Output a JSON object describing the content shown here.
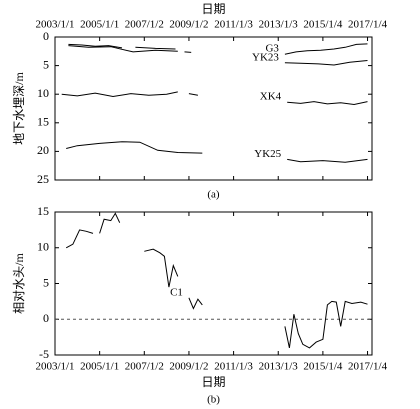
{
  "chart_data": [
    {
      "type": "line",
      "xlabel": "日期",
      "ylabel": "地下水埋深/m",
      "caption": "(a)",
      "xaxis": "top",
      "xlim": [
        2003,
        2017.2
      ],
      "ylim": [
        25,
        0
      ],
      "yticks": [
        0,
        5,
        10,
        15,
        20,
        25
      ],
      "xticks": [
        {
          "value": 2003,
          "label": "2003/1/1"
        },
        {
          "value": 2005,
          "label": "2005/1/1"
        },
        {
          "value": 2007,
          "label": "2007/1/2"
        },
        {
          "value": 2009,
          "label": "2009/1/2"
        },
        {
          "value": 2011,
          "label": "2011/1/3"
        },
        {
          "value": 2013,
          "label": "2013/1/3"
        },
        {
          "value": 2015,
          "label": "2015/1/4"
        },
        {
          "value": 2017,
          "label": "2017/1/4"
        }
      ],
      "series": [
        {
          "name": "G3",
          "color": "#000000",
          "x": [
            2003.6,
            2004.2,
            2004.8,
            2005.4,
            2006.0,
            null,
            2006.6,
            2007.5,
            2008.4,
            null,
            2008.8,
            2009.1,
            null,
            2013.3,
            2013.8,
            2014.3,
            2014.9,
            2015.5,
            2016.0,
            2016.5,
            2017.0
          ],
          "values": [
            1.3,
            1.4,
            1.6,
            1.5,
            1.9,
            null,
            1.8,
            2.0,
            2.1,
            null,
            2.6,
            2.7,
            null,
            3.0,
            2.6,
            2.4,
            2.3,
            2.1,
            1.8,
            1.3,
            1.2
          ]
        },
        {
          "name": "YK23",
          "color": "#000000",
          "x": [
            2003.6,
            2004.5,
            2005.5,
            2006.5,
            2007.5,
            2008.5,
            null,
            2013.3,
            2014.0,
            2014.8,
            2015.5,
            2016.2,
            2017.0
          ],
          "values": [
            1.5,
            1.8,
            1.7,
            2.6,
            2.3,
            2.5,
            null,
            4.5,
            4.6,
            4.7,
            4.9,
            4.4,
            4.1
          ]
        },
        {
          "name": "XK4",
          "color": "#000000",
          "x": [
            2003.3,
            2004.0,
            2004.8,
            2005.6,
            2006.4,
            2007.2,
            2008.0,
            2008.5,
            null,
            2009.0,
            2009.4,
            null,
            2013.4,
            2014.0,
            2014.6,
            2015.2,
            2015.8,
            2016.4,
            2017.0
          ],
          "values": [
            10.0,
            10.3,
            9.8,
            10.4,
            9.9,
            10.2,
            10.0,
            9.6,
            null,
            9.9,
            10.2,
            null,
            11.4,
            11.6,
            11.3,
            11.7,
            11.5,
            11.8,
            11.3
          ]
        },
        {
          "name": "YK25",
          "color": "#000000",
          "x": [
            2003.5,
            2004.0,
            2005.0,
            2006.0,
            2006.8,
            2007.6,
            2008.5,
            2009.6,
            null,
            2013.4,
            2014.0,
            2015.0,
            2016.0,
            2017.0
          ],
          "values": [
            19.5,
            19.0,
            18.6,
            18.3,
            18.4,
            19.8,
            20.2,
            20.3,
            null,
            21.4,
            21.8,
            21.6,
            21.9,
            21.4
          ]
        }
      ]
    },
    {
      "type": "line",
      "xlabel": "日期",
      "ylabel": "相对水头/m",
      "caption": "(b)",
      "xaxis": "bottom",
      "reference_line": 0,
      "xlim": [
        2003,
        2017.2
      ],
      "ylim": [
        -5,
        15
      ],
      "yticks": [
        -5,
        0,
        5,
        10,
        15
      ],
      "xticks": [
        {
          "value": 2003,
          "label": "2003/1/1"
        },
        {
          "value": 2005,
          "label": "2005/1/1"
        },
        {
          "value": 2007,
          "label": "2007/1/2"
        },
        {
          "value": 2009,
          "label": "2009/1/2"
        },
        {
          "value": 2011,
          "label": "2011/1/3"
        },
        {
          "value": 2013,
          "label": "2013/1/3"
        },
        {
          "value": 2015,
          "label": "2015/1/4"
        },
        {
          "value": 2017,
          "label": "2017/1/4"
        }
      ],
      "series": [
        {
          "name": "C1",
          "color": "#000000",
          "x": [
            2003.5,
            2003.8,
            2004.1,
            2004.4,
            2004.7,
            null,
            2005.0,
            2005.2,
            2005.5,
            2005.7,
            2005.9,
            null,
            2007.0,
            2007.4,
            2007.7,
            2007.9,
            2008.1,
            2008.3,
            2008.5,
            null,
            2009.0,
            2009.2,
            2009.4,
            2009.6,
            null,
            2013.3,
            2013.5,
            2013.7,
            2013.9,
            2014.1,
            2014.4,
            2014.7,
            2015.0,
            2015.2,
            2015.4,
            2015.6,
            2015.8,
            2016.0,
            2016.3,
            2016.7,
            2017.0
          ],
          "values": [
            10,
            10.5,
            12.5,
            12.3,
            12,
            null,
            12,
            14,
            13.8,
            14.8,
            13.5,
            null,
            9.5,
            9.8,
            9.3,
            8.8,
            4.5,
            7.5,
            6,
            null,
            3,
            1.5,
            2.8,
            2,
            null,
            -1,
            -4,
            0.7,
            -2,
            -3.5,
            -4,
            -3.2,
            -2.8,
            2,
            2.5,
            2.4,
            -1,
            2.5,
            2.2,
            2.4,
            2.1
          ]
        }
      ]
    }
  ]
}
